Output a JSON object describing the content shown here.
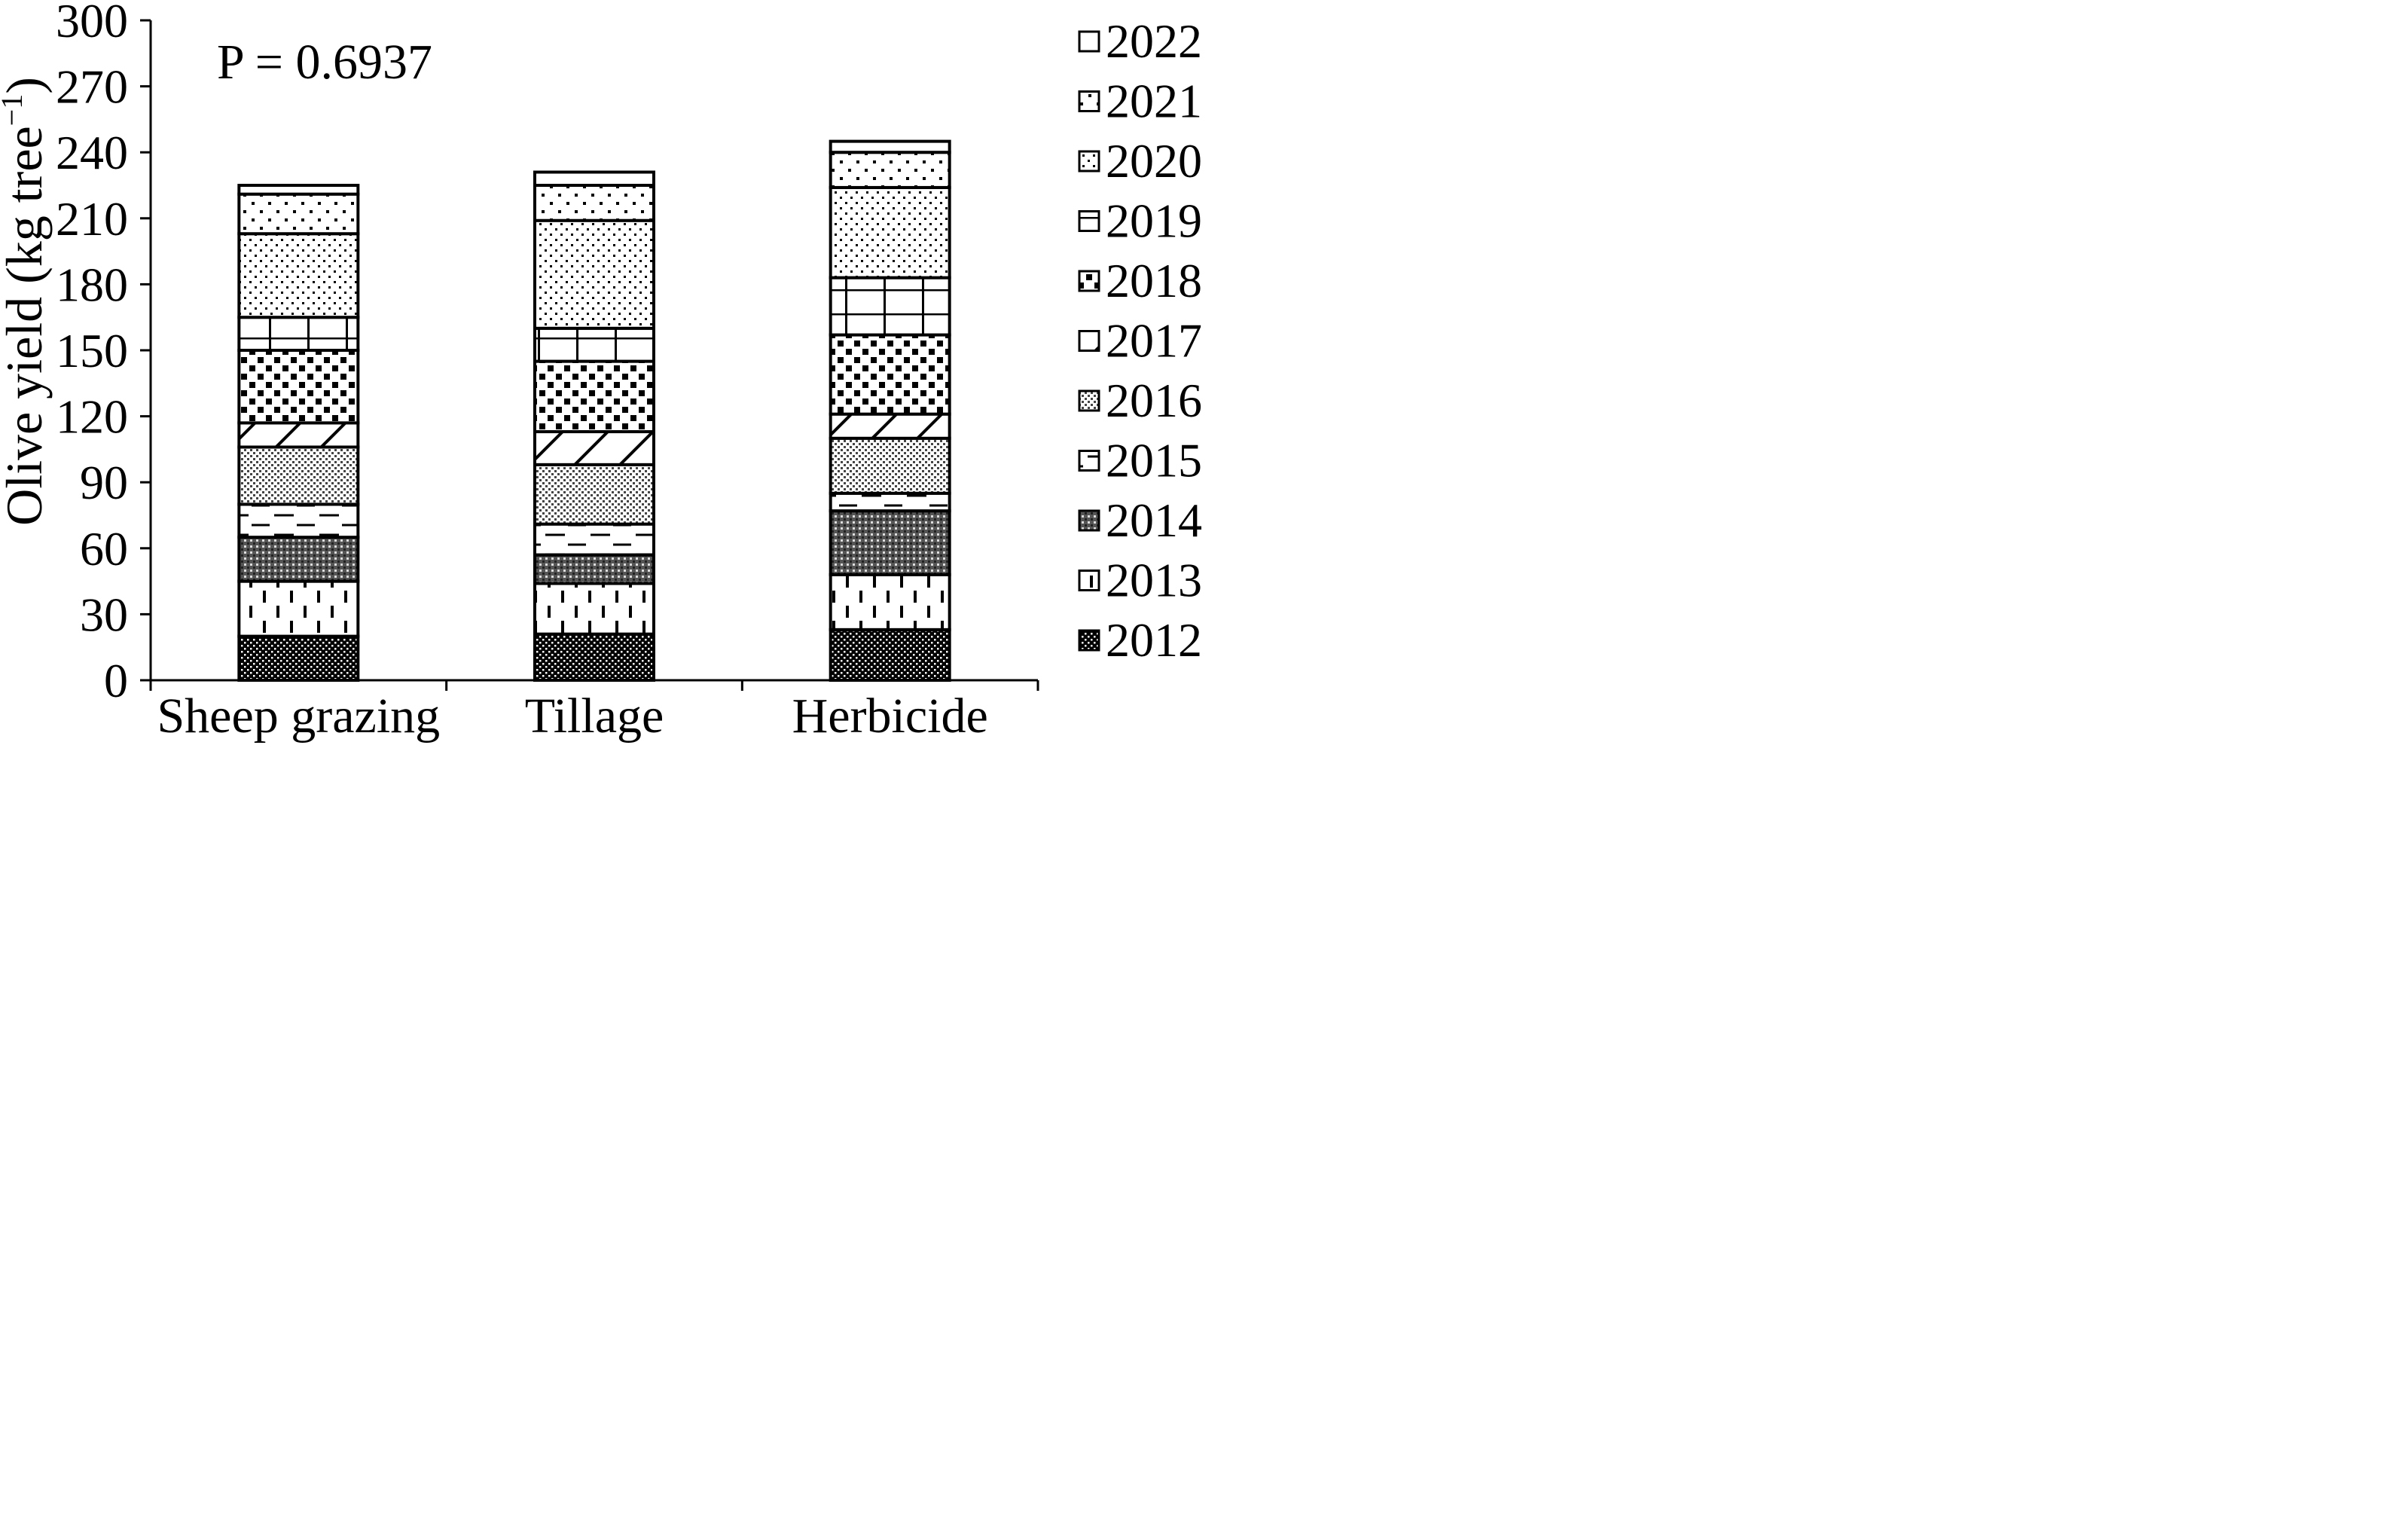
{
  "chart_data": {
    "type": "bar",
    "stacked": true,
    "title": "",
    "xlabel": "",
    "ylabel": "Olive yield (kg tree",
    "ylabel_superscript": "−1",
    "ylabel_close": ")",
    "ylim": [
      0,
      300
    ],
    "yticks": [
      0,
      30,
      60,
      90,
      120,
      150,
      180,
      210,
      240,
      270,
      300
    ],
    "grid": false,
    "legend_position": "right",
    "annotation": "P = 0.6937",
    "categories": [
      "Sheep grazing",
      "Tillage",
      "Herbicide"
    ],
    "series": [
      {
        "name": "2012",
        "pattern": "dense-dots",
        "values": [
          20,
          21,
          23
        ]
      },
      {
        "name": "2013",
        "pattern": "vertical-dashes",
        "values": [
          25,
          23,
          25
        ]
      },
      {
        "name": "2014",
        "pattern": "crosshatch-dots",
        "values": [
          20,
          13,
          29
        ]
      },
      {
        "name": "2015",
        "pattern": "horizontal-dashes",
        "values": [
          15,
          14,
          8
        ]
      },
      {
        "name": "2016",
        "pattern": "fine-dots",
        "values": [
          26,
          27,
          25
        ]
      },
      {
        "name": "2017",
        "pattern": "diagonal",
        "values": [
          11,
          15,
          11
        ]
      },
      {
        "name": "2018",
        "pattern": "checker-squares",
        "values": [
          33,
          32,
          36
        ]
      },
      {
        "name": "2019",
        "pattern": "grid",
        "values": [
          15,
          15,
          26
        ]
      },
      {
        "name": "2020",
        "pattern": "sparse-dots",
        "values": [
          38,
          49,
          41
        ]
      },
      {
        "name": "2021",
        "pattern": "medium-dots",
        "values": [
          18,
          16,
          16
        ]
      },
      {
        "name": "2022",
        "pattern": "blank",
        "values": [
          4,
          6,
          5
        ]
      }
    ]
  }
}
